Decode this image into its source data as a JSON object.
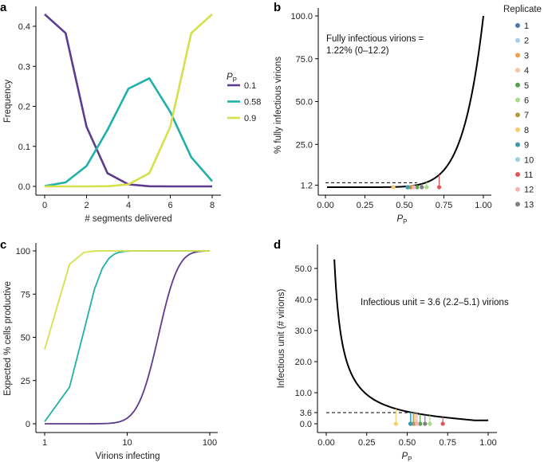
{
  "chart_data": [
    {
      "panel": "a",
      "type": "line",
      "xlabel": "# segments delivered",
      "ylabel": "Frequency",
      "x": [
        0,
        1,
        2,
        3,
        4,
        5,
        6,
        7,
        8
      ],
      "xticks": [
        "0",
        "2",
        "4",
        "6",
        "8"
      ],
      "yticks": [
        "0.0",
        "0.1",
        "0.2",
        "0.3",
        "0.4"
      ],
      "xlim": [
        0,
        8
      ],
      "ylim": [
        0,
        0.4
      ],
      "legend_title": "P",
      "legend_title_sub": "P",
      "legend_position": "right",
      "series": [
        {
          "name": "0.1",
          "color": "#5b3c8f",
          "values": [
            0.43,
            0.383,
            0.149,
            0.033,
            0.005,
            0.0004,
            0.0,
            0.0,
            0.0
          ]
        },
        {
          "name": "0.58",
          "color": "#1fb0a9",
          "values": [
            0.001,
            0.01,
            0.051,
            0.141,
            0.244,
            0.27,
            0.186,
            0.073,
            0.013
          ]
        },
        {
          "name": "0.9",
          "color": "#d6e04a",
          "values": [
            0.0,
            0.0,
            0.0,
            0.0004,
            0.005,
            0.033,
            0.149,
            0.383,
            0.43
          ]
        }
      ]
    },
    {
      "panel": "b",
      "type": "line",
      "xlabel": "P",
      "xlabel_sub": "P",
      "ylabel": "% fully infectious virions",
      "xticks": [
        "0.00",
        "0.25",
        "0.50",
        "0.75",
        "1.00"
      ],
      "yticks": [
        "1.2",
        "25.0",
        "50.0",
        "75.0",
        "100.0"
      ],
      "ytick_values": [
        1.2,
        25,
        50,
        75,
        100
      ],
      "xlim": [
        0,
        1
      ],
      "ylim": [
        0,
        100
      ],
      "curve": "100 * P^8",
      "reference_line_y": 1.22,
      "annotation_line1": "Fully infectious virions =",
      "annotation_line2": "1.22% (0–12.2)",
      "legend_title": "Replicate",
      "legend_position": "right"
    },
    {
      "panel": "c",
      "type": "line",
      "xlabel": "Virions infecting",
      "ylabel": "Expected % cells productive",
      "xscale": "log",
      "xticks": [
        "1",
        "10",
        "100"
      ],
      "yticks": [
        "0",
        "25",
        "50",
        "75",
        "100"
      ],
      "xlim": [
        1,
        100
      ],
      "ylim": [
        0,
        100
      ],
      "curve": "100 * (1 - (1-P)^n)^8",
      "series": [
        {
          "name": "0.1",
          "color": "#5b3c8f",
          "p": 0.1
        },
        {
          "name": "0.58",
          "color": "#1fb0a9",
          "p": 0.58
        },
        {
          "name": "0.9",
          "color": "#d6e04a",
          "p": 0.9
        }
      ]
    },
    {
      "panel": "d",
      "type": "line",
      "xlabel": "P",
      "xlabel_sub": "P",
      "ylabel": "Infectious unit (# virions)",
      "xticks": [
        "0.00",
        "0.25",
        "0.50",
        "0.75",
        "1.00"
      ],
      "yticks": [
        "0.0",
        "3.6",
        "10.0",
        "20.0",
        "30.0",
        "40.0",
        "50.0"
      ],
      "ytick_values": [
        0,
        3.6,
        10,
        20,
        30,
        40,
        50
      ],
      "xlim": [
        0,
        1
      ],
      "ylim": [
        0,
        50
      ],
      "reference_line_y": 3.6,
      "annotation": "Infectious unit = 3.6 (2.2–5.1) virions"
    }
  ],
  "replicates": [
    {
      "label": "1",
      "color": "#4e79a7",
      "p": 0.52
    },
    {
      "label": "2",
      "color": "#a8cbe8",
      "p": 0.53
    },
    {
      "label": "3",
      "color": "#f0a04b",
      "p": 0.54
    },
    {
      "label": "4",
      "color": "#f7c4a0",
      "p": 0.55
    },
    {
      "label": "5",
      "color": "#59a14f",
      "p": 0.58
    },
    {
      "label": "6",
      "color": "#a8dc8c",
      "p": 0.64
    },
    {
      "label": "7",
      "color": "#b59a3d",
      "p": 0.54
    },
    {
      "label": "8",
      "color": "#f5cf6e",
      "p": 0.43
    },
    {
      "label": "9",
      "color": "#3e9aa8",
      "p": 0.52
    },
    {
      "label": "10",
      "color": "#9fd0d8",
      "p": 0.56
    },
    {
      "label": "11",
      "color": "#e15759",
      "p": 0.72
    },
    {
      "label": "12",
      "color": "#f8b4b8",
      "p": 0.56
    },
    {
      "label": "13",
      "color": "#7f7f7f",
      "p": 0.61
    }
  ],
  "panel_labels": [
    "a",
    "b",
    "c",
    "d"
  ]
}
